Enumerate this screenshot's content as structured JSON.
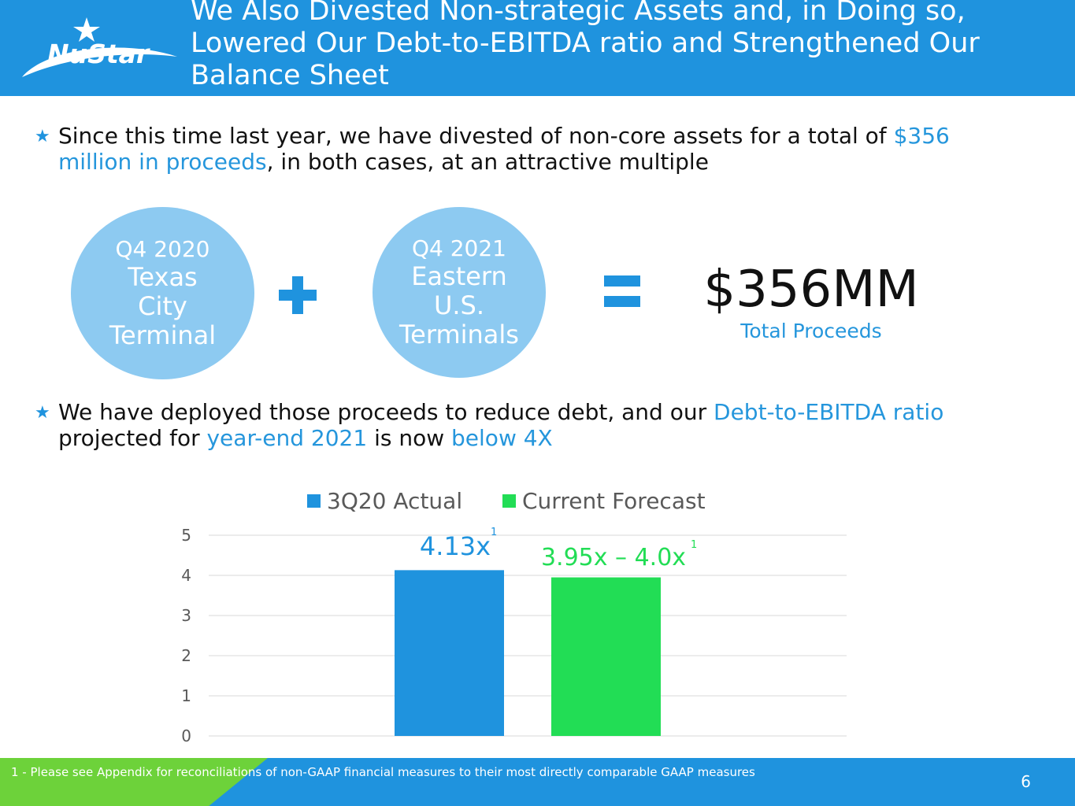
{
  "header": {
    "logo_text": "NuStar",
    "title": "We Also Divested Non-strategic Assets and, in Doing so, Lowered Our Debt-to-EBITDA ratio and Strengthened Our Balance Sheet"
  },
  "bullet1": {
    "text_a": "Since this time last year, we have divested of non-core assets for a total of ",
    "highlight": "$356 million in proceeds",
    "text_b": ", in both cases, at an attractive multiple"
  },
  "circles": [
    {
      "quarter": "Q4 2020",
      "name_lines": [
        "Texas",
        "City",
        "Terminal"
      ]
    },
    {
      "quarter": "Q4 2021",
      "name_lines": [
        "Eastern",
        "U.S.",
        "Terminals"
      ]
    }
  ],
  "total": {
    "value": "$356MM",
    "label": "Total Proceeds"
  },
  "bullet2": {
    "text_a": "We have deployed those proceeds to reduce debt, and our ",
    "hl_a": "Debt-to-EBITDA ratio",
    "text_b": " projected for ",
    "hl_b": "year-end 2021",
    "text_c": " is now ",
    "hl_c": "below 4X"
  },
  "chart_data": {
    "type": "bar",
    "categories": [
      ""
    ],
    "series": [
      {
        "name": "3Q20 Actual",
        "values": [
          4.13
        ],
        "color": "#1f93de",
        "label": "4.13x",
        "superscript": "1"
      },
      {
        "name": "Current Forecast",
        "values": [
          3.95
        ],
        "color": "#22dd55",
        "label": "3.95x – 4.0x",
        "superscript": "1"
      }
    ],
    "yticks": [
      "0",
      "1",
      "2",
      "3",
      "4",
      "5"
    ],
    "ylim": [
      0,
      5
    ],
    "grid": true,
    "legend": "top"
  },
  "footer": {
    "footnote": "1 - Please see Appendix for reconciliations of non-GAAP financial measures to their most directly comparable GAAP measures",
    "page": "6"
  },
  "colors": {
    "brand_blue": "#1f93de",
    "circle_blue": "#8dcaf1",
    "accent_green": "#22dd55"
  }
}
